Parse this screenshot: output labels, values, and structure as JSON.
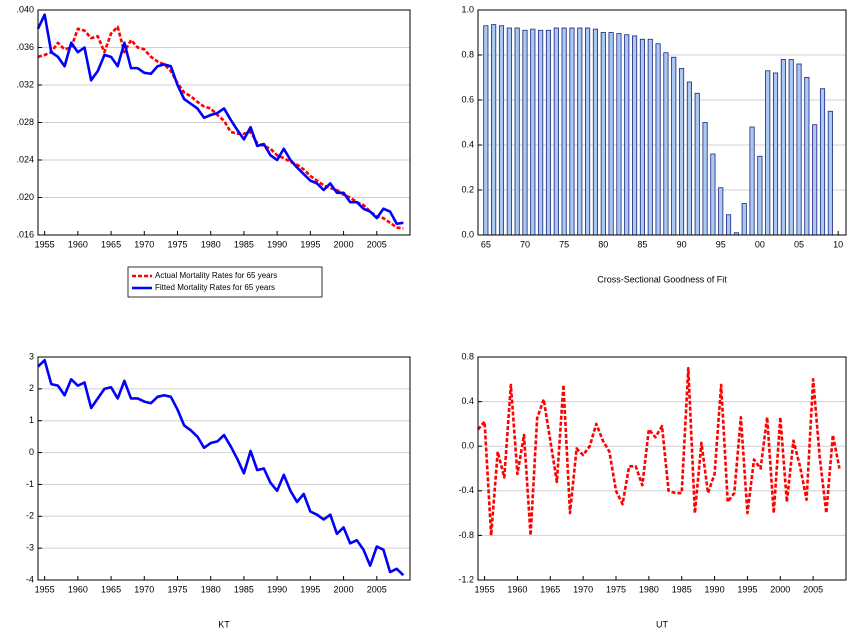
{
  "chart_data": [
    {
      "type": "line",
      "legend": "below",
      "grid": true,
      "x": [
        1954,
        1955,
        1956,
        1957,
        1958,
        1959,
        1960,
        1961,
        1962,
        1963,
        1964,
        1965,
        1966,
        1967,
        1968,
        1969,
        1970,
        1971,
        1972,
        1973,
        1974,
        1975,
        1976,
        1977,
        1978,
        1979,
        1980,
        1981,
        1982,
        1983,
        1984,
        1985,
        1986,
        1987,
        1988,
        1989,
        1990,
        1991,
        1992,
        1993,
        1994,
        1995,
        1996,
        1997,
        1998,
        1999,
        2000,
        2001,
        2002,
        2003,
        2004,
        2005,
        2006,
        2007,
        2008,
        2009
      ],
      "xlim": [
        1954,
        2010
      ],
      "xticks": [
        1955,
        1960,
        1965,
        1970,
        1975,
        1980,
        1985,
        1990,
        1995,
        2000,
        2005
      ],
      "ylim": [
        0.016,
        0.04
      ],
      "yticks": [
        {
          "value": 0.016,
          "label": ".016"
        },
        {
          "value": 0.02,
          "label": ".020"
        },
        {
          "value": 0.024,
          "label": ".024"
        },
        {
          "value": 0.028,
          "label": ".028"
        },
        {
          "value": 0.032,
          "label": ".032"
        },
        {
          "value": 0.036,
          "label": ".036"
        },
        {
          "value": 0.04,
          "label": ".040"
        }
      ],
      "series": [
        {
          "name": "Actual Mortality Rates for 65 years",
          "color": "#ff0000",
          "line_style": "dashed",
          "values": [
            0.035,
            0.0352,
            0.0355,
            0.0365,
            0.0358,
            0.036,
            0.038,
            0.0378,
            0.037,
            0.0372,
            0.0355,
            0.0375,
            0.0382,
            0.0355,
            0.0368,
            0.036,
            0.0358,
            0.035,
            0.0345,
            0.0342,
            0.0335,
            0.0322,
            0.0312,
            0.0308,
            0.0302,
            0.0297,
            0.0295,
            0.0288,
            0.0282,
            0.027,
            0.0268,
            0.0268,
            0.027,
            0.0258,
            0.0255,
            0.0252,
            0.0245,
            0.0242,
            0.0238,
            0.0235,
            0.023,
            0.0223,
            0.0218,
            0.0213,
            0.021,
            0.0208,
            0.0203,
            0.02,
            0.0195,
            0.0192,
            0.0185,
            0.018,
            0.0178,
            0.0173,
            0.0168,
            0.0167
          ]
        },
        {
          "name": "Fitted Mortality Rates for 65 years",
          "color": "#0000ff",
          "line_style": "solid",
          "values": [
            0.038,
            0.0395,
            0.0355,
            0.035,
            0.034,
            0.0365,
            0.0355,
            0.036,
            0.0325,
            0.0335,
            0.0352,
            0.035,
            0.034,
            0.0365,
            0.0338,
            0.0338,
            0.0333,
            0.0332,
            0.034,
            0.0342,
            0.034,
            0.032,
            0.0305,
            0.03,
            0.0295,
            0.0285,
            0.0288,
            0.029,
            0.0295,
            0.0283,
            0.0272,
            0.0262,
            0.0275,
            0.0255,
            0.0257,
            0.0245,
            0.024,
            0.0252,
            0.024,
            0.0232,
            0.0225,
            0.0218,
            0.0215,
            0.0208,
            0.0215,
            0.0205,
            0.0205,
            0.0195,
            0.0195,
            0.0188,
            0.0185,
            0.0178,
            0.0188,
            0.0185,
            0.0172,
            0.0173
          ]
        }
      ]
    },
    {
      "type": "bar",
      "grid": true,
      "x_label": "Cross-Sectional Goodness of Fit",
      "color": "#a9c9f2",
      "edgecolor": "#1a237e",
      "x": [
        1965,
        1966,
        1967,
        1968,
        1969,
        1970,
        1971,
        1972,
        1973,
        1974,
        1975,
        1976,
        1977,
        1978,
        1979,
        1980,
        1981,
        1982,
        1983,
        1984,
        1985,
        1986,
        1987,
        1988,
        1989,
        1990,
        1991,
        1992,
        1993,
        1994,
        1995,
        1996,
        1997,
        1998,
        1999,
        2000,
        2001,
        2002,
        2003,
        2004,
        2005,
        2006,
        2007,
        2008,
        2009
      ],
      "values": [
        0.93,
        0.935,
        0.93,
        0.92,
        0.92,
        0.91,
        0.915,
        0.91,
        0.91,
        0.92,
        0.92,
        0.92,
        0.92,
        0.92,
        0.915,
        0.9,
        0.9,
        0.895,
        0.89,
        0.885,
        0.87,
        0.87,
        0.85,
        0.81,
        0.79,
        0.74,
        0.68,
        0.63,
        0.5,
        0.36,
        0.21,
        0.09,
        0.01,
        0.14,
        0.48,
        0.35,
        0.73,
        0.72,
        0.78,
        0.78,
        0.76,
        0.7,
        0.49,
        0.65,
        0.55
      ],
      "xlim": [
        1964,
        2011
      ],
      "xticks": [
        {
          "value": 1965,
          "label": "65"
        },
        {
          "value": 1970,
          "label": "70"
        },
        {
          "value": 1975,
          "label": "75"
        },
        {
          "value": 1980,
          "label": "80"
        },
        {
          "value": 1985,
          "label": "85"
        },
        {
          "value": 1990,
          "label": "90"
        },
        {
          "value": 1995,
          "label": "95"
        },
        {
          "value": 2000,
          "label": "00"
        },
        {
          "value": 2005,
          "label": "05"
        },
        {
          "value": 2010,
          "label": "10"
        }
      ],
      "ylim": [
        0,
        1
      ],
      "yticks": [
        {
          "value": 0,
          "label": "0.0"
        },
        0.2,
        0.4,
        0.6,
        0.8,
        {
          "value": 1,
          "label": "1.0"
        }
      ]
    },
    {
      "type": "line",
      "grid": true,
      "x_label": "KT",
      "color": "#0000ff",
      "line_style": "solid",
      "x": [
        1954,
        1955,
        1956,
        1957,
        1958,
        1959,
        1960,
        1961,
        1962,
        1963,
        1964,
        1965,
        1966,
        1967,
        1968,
        1969,
        1970,
        1971,
        1972,
        1973,
        1974,
        1975,
        1976,
        1977,
        1978,
        1979,
        1980,
        1981,
        1982,
        1983,
        1984,
        1985,
        1986,
        1987,
        1988,
        1989,
        1990,
        1991,
        1992,
        1993,
        1994,
        1995,
        1996,
        1997,
        1998,
        1999,
        2000,
        2001,
        2002,
        2003,
        2004,
        2005,
        2006,
        2007,
        2008,
        2009
      ],
      "values": [
        2.7,
        2.9,
        2.15,
        2.1,
        1.8,
        2.3,
        2.1,
        2.2,
        1.4,
        1.7,
        2.0,
        2.05,
        1.7,
        2.25,
        1.7,
        1.7,
        1.6,
        1.55,
        1.75,
        1.8,
        1.75,
        1.35,
        0.85,
        0.7,
        0.5,
        0.15,
        0.3,
        0.35,
        0.55,
        0.2,
        -0.2,
        -0.65,
        0.05,
        -0.55,
        -0.5,
        -0.95,
        -1.2,
        -0.7,
        -1.2,
        -1.55,
        -1.3,
        -1.85,
        -1.95,
        -2.1,
        -1.95,
        -2.55,
        -2.35,
        -2.85,
        -2.75,
        -3.05,
        -3.55,
        -2.95,
        -3.05,
        -3.75,
        -3.65,
        -3.85
      ],
      "xlim": [
        1954,
        2010
      ],
      "xticks": [
        1955,
        1960,
        1965,
        1970,
        1975,
        1980,
        1985,
        1990,
        1995,
        2000,
        2005
      ],
      "ylim": [
        -4,
        3
      ],
      "yticks": [
        -4,
        -3,
        -2,
        -1,
        0,
        1,
        2,
        3
      ]
    },
    {
      "type": "line",
      "grid": true,
      "x_label": "UT",
      "color": "#ff0000",
      "line_style": "dashed",
      "x": [
        1954,
        1955,
        1956,
        1957,
        1958,
        1959,
        1960,
        1961,
        1962,
        1963,
        1964,
        1965,
        1966,
        1967,
        1968,
        1969,
        1970,
        1971,
        1972,
        1973,
        1974,
        1975,
        1976,
        1977,
        1978,
        1979,
        1980,
        1981,
        1982,
        1983,
        1984,
        1985,
        1986,
        1987,
        1988,
        1989,
        1990,
        1991,
        1992,
        1993,
        1994,
        1995,
        1996,
        1997,
        1998,
        1999,
        2000,
        2001,
        2002,
        2003,
        2004,
        2005,
        2006,
        2007,
        2008,
        2009
      ],
      "values": [
        0.15,
        0.22,
        -0.8,
        -0.05,
        -0.28,
        0.55,
        -0.25,
        0.1,
        -0.8,
        0.25,
        0.42,
        0.05,
        -0.32,
        0.55,
        -0.6,
        -0.02,
        -0.08,
        0.0,
        0.2,
        0.05,
        -0.05,
        -0.4,
        -0.52,
        -0.18,
        -0.18,
        -0.35,
        0.15,
        0.08,
        0.18,
        -0.4,
        -0.42,
        -0.42,
        0.7,
        -0.6,
        0.03,
        -0.42,
        -0.25,
        0.55,
        -0.5,
        -0.42,
        0.26,
        -0.6,
        -0.12,
        -0.2,
        0.26,
        -0.6,
        0.26,
        -0.5,
        0.05,
        -0.18,
        -0.48,
        0.6,
        -0.1,
        -0.6,
        0.1,
        -0.2
      ],
      "xlim": [
        1954,
        2010
      ],
      "xticks": [
        1955,
        1960,
        1965,
        1970,
        1975,
        1980,
        1985,
        1990,
        1995,
        2000,
        2005
      ],
      "ylim": [
        -1.2,
        0.8
      ],
      "yticks": [
        -1.2,
        -0.8,
        -0.4,
        {
          "value": 0,
          "label": "0.0"
        },
        0.4,
        0.8
      ]
    }
  ]
}
